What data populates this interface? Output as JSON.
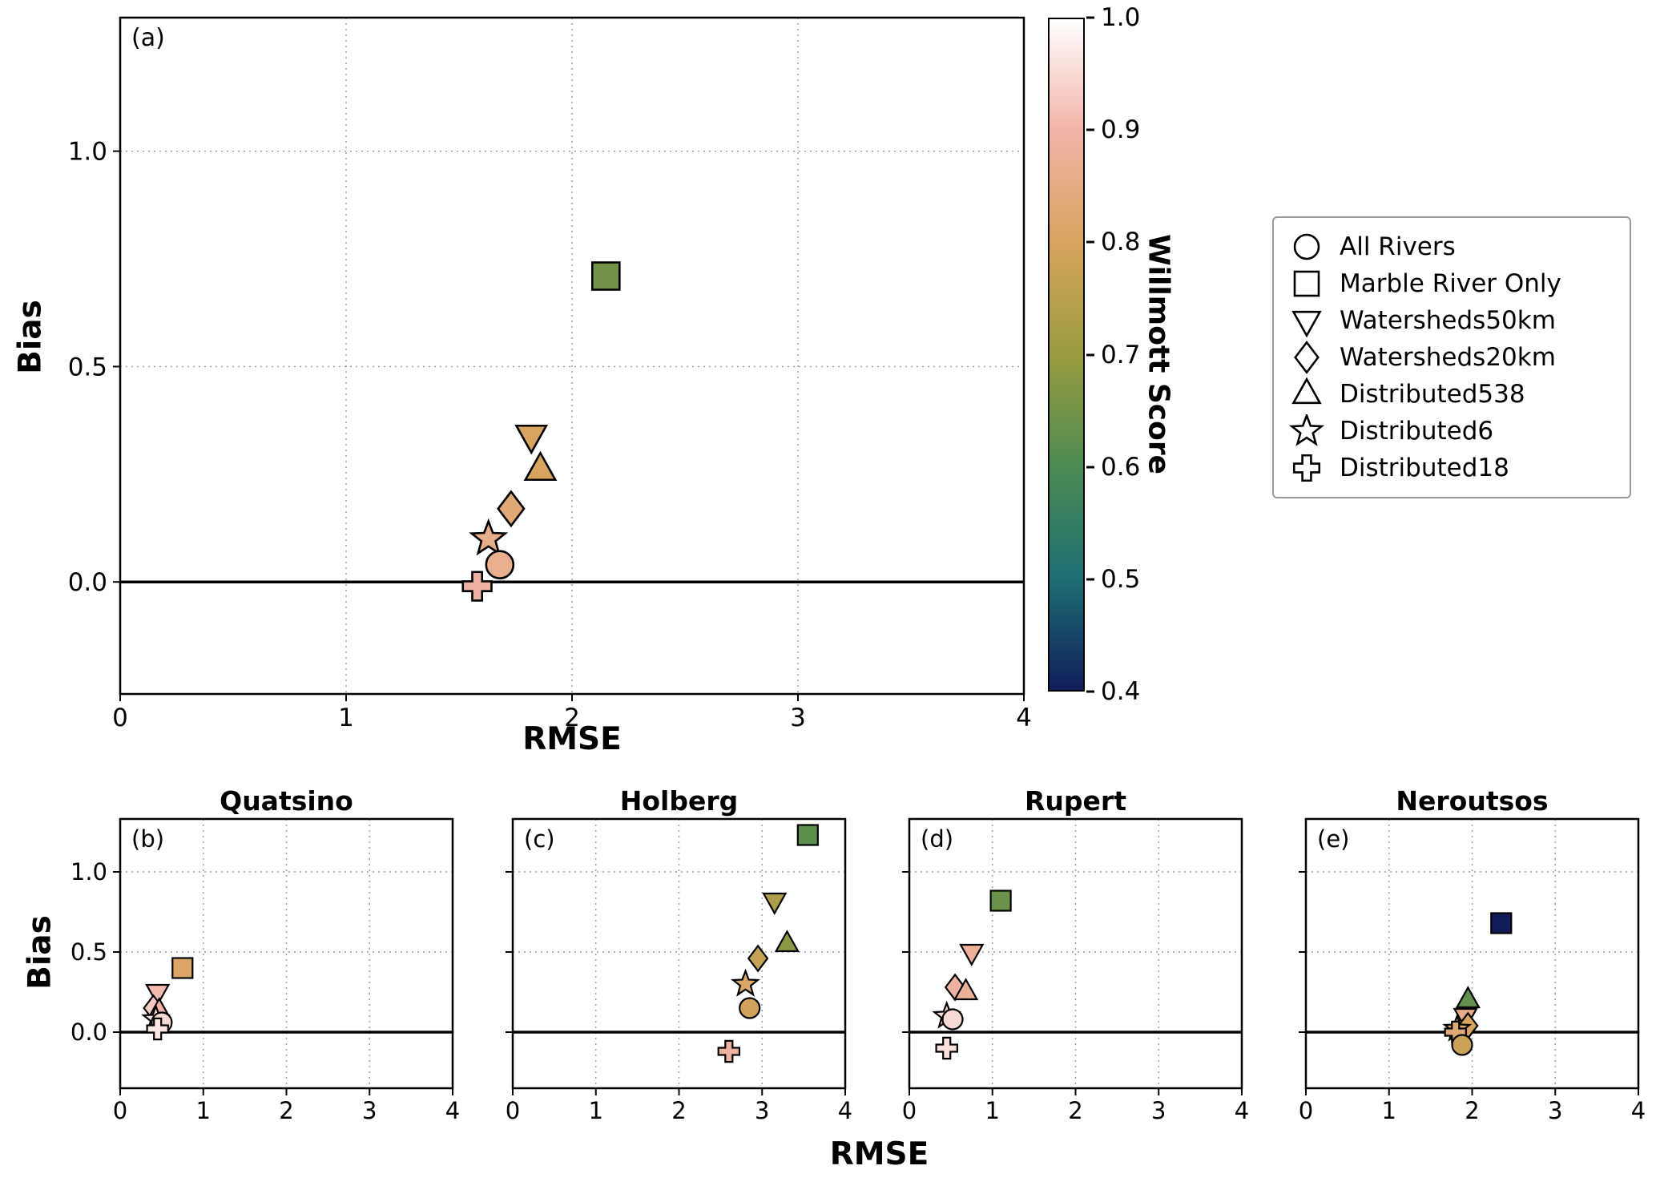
{
  "figure": {
    "shared_xlabel": "RMSE",
    "shared_ylabel": "Bias",
    "colorbar": {
      "title": "Willmott Score",
      "range": [
        0.4,
        1.0
      ],
      "ticks": [
        1.0,
        0.9,
        0.8,
        0.7,
        0.6,
        0.5,
        0.4
      ],
      "stops": [
        {
          "v": 0.4,
          "color": "#101e5a"
        },
        {
          "v": 0.5,
          "color": "#1e6f74"
        },
        {
          "v": 0.6,
          "color": "#4c8b52"
        },
        {
          "v": 0.7,
          "color": "#9a9c3f"
        },
        {
          "v": 0.8,
          "color": "#d8a45f"
        },
        {
          "v": 0.9,
          "color": "#f2b3a7"
        },
        {
          "v": 1.0,
          "color": "#ffffff"
        }
      ]
    },
    "legend": {
      "items": [
        {
          "marker": "circle",
          "label": "All Rivers"
        },
        {
          "marker": "square",
          "label": "Marble River Only"
        },
        {
          "marker": "triangle-down",
          "label": "Watersheds50km"
        },
        {
          "marker": "diamond",
          "label": "Watersheds20km"
        },
        {
          "marker": "triangle-up",
          "label": "Distributed538"
        },
        {
          "marker": "star",
          "label": "Distributed6"
        },
        {
          "marker": "plus",
          "label": "Distributed18"
        }
      ]
    }
  },
  "chart_data": [
    {
      "id": "a",
      "type": "scatter",
      "panel_label": "(a)",
      "title": "",
      "xlabel": "RMSE",
      "ylabel": "Bias",
      "xlim": [
        0,
        4
      ],
      "ylim": [
        -0.26,
        1.31
      ],
      "xticks": [
        0,
        1,
        2,
        3,
        4
      ],
      "xtick_labels": [
        "0",
        "1",
        "2",
        "3",
        "4"
      ],
      "yticks": [
        0.0,
        0.5,
        1.0
      ],
      "ytick_labels": [
        "0.0",
        "0.5",
        "1.0"
      ],
      "grid": true,
      "zero_line": true,
      "points": [
        {
          "series": "Marble River Only",
          "marker": "square",
          "rmse": 2.15,
          "bias": 0.71,
          "willmott": 0.65
        },
        {
          "series": "Watersheds50km",
          "marker": "triangle-down",
          "rmse": 1.82,
          "bias": 0.34,
          "willmott": 0.8
        },
        {
          "series": "Distributed538",
          "marker": "triangle-up",
          "rmse": 1.86,
          "bias": 0.26,
          "willmott": 0.8
        },
        {
          "series": "Watersheds20km",
          "marker": "diamond",
          "rmse": 1.73,
          "bias": 0.17,
          "willmott": 0.83
        },
        {
          "series": "Distributed6",
          "marker": "star",
          "rmse": 1.63,
          "bias": 0.1,
          "willmott": 0.86
        },
        {
          "series": "All Rivers",
          "marker": "circle",
          "rmse": 1.68,
          "bias": 0.04,
          "willmott": 0.87
        },
        {
          "series": "Distributed18",
          "marker": "plus",
          "rmse": 1.58,
          "bias": -0.01,
          "willmott": 0.89
        }
      ]
    },
    {
      "id": "b",
      "type": "scatter",
      "panel_label": "(b)",
      "title": "Quatsino",
      "xlabel": "RMSE",
      "ylabel": "Bias",
      "xlim": [
        0,
        4
      ],
      "ylim": [
        -0.35,
        1.33
      ],
      "xticks": [
        0,
        1,
        2,
        3,
        4
      ],
      "xtick_labels": [
        "0",
        "1",
        "2",
        "3",
        "4"
      ],
      "yticks": [
        0.0,
        0.5,
        1.0
      ],
      "ytick_labels": [
        "0.0",
        "0.5",
        "1.0"
      ],
      "grid": true,
      "zero_line": true,
      "points": [
        {
          "series": "Marble River Only",
          "marker": "square",
          "rmse": 0.75,
          "bias": 0.4,
          "willmott": 0.81
        },
        {
          "series": "Watersheds50km",
          "marker": "triangle-down",
          "rmse": 0.45,
          "bias": 0.25,
          "willmott": 0.91
        },
        {
          "series": "Watersheds20km",
          "marker": "diamond",
          "rmse": 0.4,
          "bias": 0.15,
          "willmott": 0.93
        },
        {
          "series": "Distributed538",
          "marker": "triangle-up",
          "rmse": 0.47,
          "bias": 0.13,
          "willmott": 0.9
        },
        {
          "series": "Distributed6",
          "marker": "star",
          "rmse": 0.43,
          "bias": 0.08,
          "willmott": 0.96
        },
        {
          "series": "All Rivers",
          "marker": "circle",
          "rmse": 0.5,
          "bias": 0.06,
          "willmott": 0.95
        },
        {
          "series": "Distributed18",
          "marker": "plus",
          "rmse": 0.45,
          "bias": 0.02,
          "willmott": 0.97
        }
      ]
    },
    {
      "id": "c",
      "type": "scatter",
      "panel_label": "(c)",
      "title": "Holberg",
      "xlabel": "RMSE",
      "ylabel": "Bias",
      "xlim": [
        0,
        4
      ],
      "ylim": [
        -0.35,
        1.33
      ],
      "xticks": [
        0,
        1,
        2,
        3,
        4
      ],
      "xtick_labels": [
        "0",
        "1",
        "2",
        "3",
        "4"
      ],
      "yticks": [
        0.0,
        0.5,
        1.0
      ],
      "ytick_labels": [],
      "grid": true,
      "zero_line": true,
      "points": [
        {
          "series": "Marble River Only",
          "marker": "square",
          "rmse": 3.55,
          "bias": 1.23,
          "willmott": 0.62
        },
        {
          "series": "Watersheds50km",
          "marker": "triangle-down",
          "rmse": 3.15,
          "bias": 0.82,
          "willmott": 0.73
        },
        {
          "series": "Distributed538",
          "marker": "triangle-up",
          "rmse": 3.3,
          "bias": 0.55,
          "willmott": 0.68
        },
        {
          "series": "Watersheds20km",
          "marker": "diamond",
          "rmse": 2.95,
          "bias": 0.46,
          "willmott": 0.77
        },
        {
          "series": "Distributed6",
          "marker": "star",
          "rmse": 2.8,
          "bias": 0.3,
          "willmott": 0.81
        },
        {
          "series": "All Rivers",
          "marker": "circle",
          "rmse": 2.85,
          "bias": 0.15,
          "willmott": 0.79
        },
        {
          "series": "Distributed18",
          "marker": "plus",
          "rmse": 2.6,
          "bias": -0.12,
          "willmott": 0.89
        }
      ]
    },
    {
      "id": "d",
      "type": "scatter",
      "panel_label": "(d)",
      "title": "Rupert",
      "xlabel": "RMSE",
      "ylabel": "Bias",
      "xlim": [
        0,
        4
      ],
      "ylim": [
        -0.35,
        1.33
      ],
      "xticks": [
        0,
        1,
        2,
        3,
        4
      ],
      "xtick_labels": [
        "0",
        "1",
        "2",
        "3",
        "4"
      ],
      "yticks": [
        0.0,
        0.5,
        1.0
      ],
      "ytick_labels": [],
      "grid": true,
      "zero_line": true,
      "points": [
        {
          "series": "Marble River Only",
          "marker": "square",
          "rmse": 1.1,
          "bias": 0.82,
          "willmott": 0.64
        },
        {
          "series": "Watersheds50km",
          "marker": "triangle-down",
          "rmse": 0.75,
          "bias": 0.5,
          "willmott": 0.88
        },
        {
          "series": "Watersheds20km",
          "marker": "diamond",
          "rmse": 0.55,
          "bias": 0.28,
          "willmott": 0.89
        },
        {
          "series": "Distributed538",
          "marker": "triangle-up",
          "rmse": 0.68,
          "bias": 0.25,
          "willmott": 0.88
        },
        {
          "series": "Distributed6",
          "marker": "star",
          "rmse": 0.45,
          "bias": 0.1,
          "willmott": 0.95
        },
        {
          "series": "All Rivers",
          "marker": "circle",
          "rmse": 0.52,
          "bias": 0.08,
          "willmott": 0.95
        },
        {
          "series": "Distributed18",
          "marker": "plus",
          "rmse": 0.45,
          "bias": -0.1,
          "willmott": 0.96
        }
      ]
    },
    {
      "id": "e",
      "type": "scatter",
      "panel_label": "(e)",
      "title": "Neroutsos",
      "xlabel": "RMSE",
      "ylabel": "Bias",
      "xlim": [
        0,
        4
      ],
      "ylim": [
        -0.35,
        1.33
      ],
      "xticks": [
        0,
        1,
        2,
        3,
        4
      ],
      "xtick_labels": [
        "0",
        "1",
        "2",
        "3",
        "4"
      ],
      "yticks": [
        0.0,
        0.5,
        1.0
      ],
      "ytick_labels": [],
      "grid": true,
      "zero_line": true,
      "points": [
        {
          "series": "Marble River Only",
          "marker": "square",
          "rmse": 2.35,
          "bias": 0.68,
          "willmott": 0.4
        },
        {
          "series": "Distributed538",
          "marker": "triangle-up",
          "rmse": 1.95,
          "bias": 0.2,
          "willmott": 0.63
        },
        {
          "series": "Watersheds50km",
          "marker": "triangle-down",
          "rmse": 1.92,
          "bias": 0.1,
          "willmott": 0.86
        },
        {
          "series": "Watersheds20km",
          "marker": "diamond",
          "rmse": 1.95,
          "bias": 0.04,
          "willmott": 0.8
        },
        {
          "series": "Distributed6",
          "marker": "star",
          "rmse": 1.82,
          "bias": 0.02,
          "willmott": 0.82
        },
        {
          "series": "Distributed18",
          "marker": "plus",
          "rmse": 1.8,
          "bias": 0.0,
          "willmott": 0.83
        },
        {
          "series": "All Rivers",
          "marker": "circle",
          "rmse": 1.88,
          "bias": -0.08,
          "willmott": 0.78
        }
      ]
    }
  ]
}
